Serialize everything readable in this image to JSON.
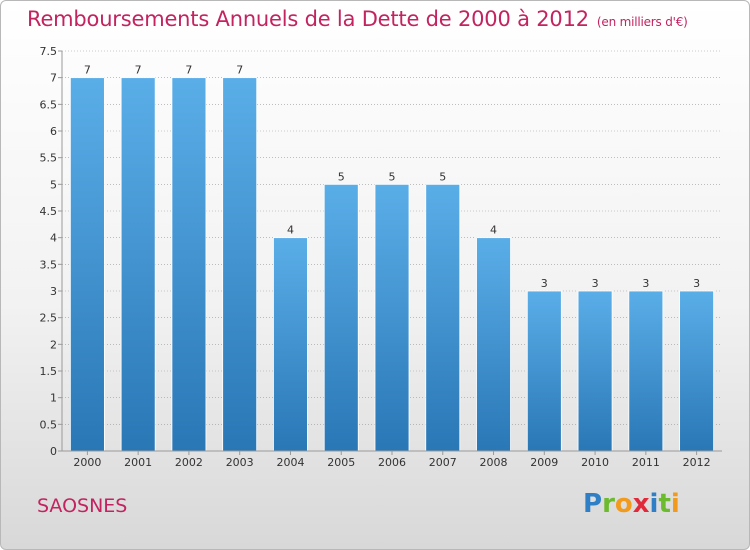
{
  "header": {
    "title": "Remboursements Annuels de la Dette de 2000 à 2012",
    "unit": "(en milliers d'€)"
  },
  "footer": {
    "commune": "SAOSNES",
    "logo_letters": [
      {
        "ch": "P",
        "color": "#2f7fc7"
      },
      {
        "ch": "r",
        "color": "#6cbb2f"
      },
      {
        "ch": "o",
        "color": "#f29a1b"
      },
      {
        "ch": "x",
        "color": "#e2293a"
      },
      {
        "ch": "i",
        "color": "#2f7fc7"
      },
      {
        "ch": "t",
        "color": "#6cbb2f"
      },
      {
        "ch": "i",
        "color": "#f29a1b"
      }
    ]
  },
  "colors": {
    "accent": "#c3235f",
    "bar_top": "#5aaee8",
    "bar_bottom": "#2a77b6",
    "grid": "#9a9a9a",
    "axis_text": "#333333"
  },
  "chart_data": {
    "type": "bar",
    "categories": [
      "2000",
      "2001",
      "2002",
      "2003",
      "2004",
      "2005",
      "2006",
      "2007",
      "2008",
      "2009",
      "2010",
      "2011",
      "2012"
    ],
    "values": [
      7,
      7,
      7,
      7,
      4,
      5,
      5,
      5,
      4,
      3,
      3,
      3,
      3
    ],
    "data_labels": [
      "7",
      "7",
      "7",
      "7",
      "4",
      "5",
      "5",
      "5",
      "4",
      "3",
      "3",
      "3",
      "3"
    ],
    "ylim": [
      0,
      7.5
    ],
    "yticks": [
      0,
      0.5,
      1,
      1.5,
      2,
      2.5,
      3,
      3.5,
      4,
      4.5,
      5,
      5.5,
      6,
      6.5,
      7,
      7.5
    ],
    "ytick_labels": [
      "0",
      "0.5",
      "1",
      "1.5",
      "2",
      "2.5",
      "3",
      "3.5",
      "4",
      "4.5",
      "5",
      "5.5",
      "6",
      "6.5",
      "7",
      "7.5"
    ],
    "grid": true
  }
}
